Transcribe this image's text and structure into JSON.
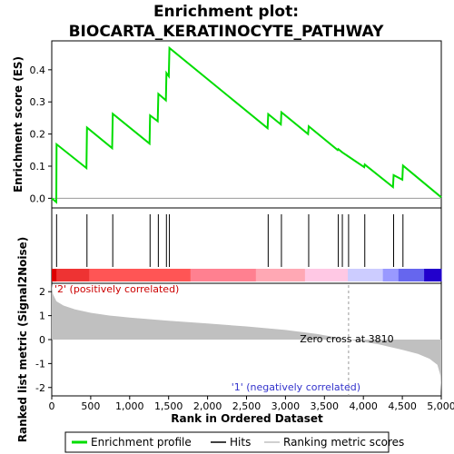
{
  "chart_data": {
    "type": "line",
    "title_line1": "Enrichment plot:",
    "title_line2": "BIOCARTA_KERATINOCYTE_PATHWAY",
    "x_domain": [
      0,
      5000
    ],
    "x_ticks": [
      0,
      500,
      1000,
      1500,
      2000,
      2500,
      3000,
      3500,
      4000,
      4500,
      5000
    ],
    "x_tick_labels": [
      "0",
      "500",
      "1,000",
      "1,500",
      "2,000",
      "2,500",
      "3,000",
      "3,500",
      "4,000",
      "4,500",
      "5,000"
    ],
    "xlabel": "Rank in Ordered Dataset",
    "es_panel": {
      "ylabel": "Enrichment score (ES)",
      "ylim": [
        -0.03,
        0.49
      ],
      "y_ticks": [
        0.0,
        0.1,
        0.2,
        0.3,
        0.4
      ],
      "y_tick_labels": [
        "0.0",
        "0.1",
        "0.2",
        "0.3",
        "0.4"
      ],
      "line_color": "#00dd00",
      "series_name": "Enrichment profile",
      "points": [
        [
          0,
          0.0
        ],
        [
          58,
          -0.012
        ],
        [
          62,
          0.168
        ],
        [
          445,
          0.094
        ],
        [
          452,
          0.22
        ],
        [
          775,
          0.156
        ],
        [
          783,
          0.263
        ],
        [
          1255,
          0.17
        ],
        [
          1262,
          0.258
        ],
        [
          1360,
          0.24
        ],
        [
          1368,
          0.325
        ],
        [
          1465,
          0.305
        ],
        [
          1472,
          0.39
        ],
        [
          1502,
          0.38
        ],
        [
          1510,
          0.468
        ],
        [
          2770,
          0.218
        ],
        [
          2778,
          0.262
        ],
        [
          2940,
          0.23
        ],
        [
          2948,
          0.268
        ],
        [
          3290,
          0.2
        ],
        [
          3298,
          0.224
        ],
        [
          3670,
          0.15
        ],
        [
          3678,
          0.153
        ],
        [
          3730,
          0.143
        ],
        [
          4010,
          0.097
        ],
        [
          4018,
          0.105
        ],
        [
          4380,
          0.035
        ],
        [
          4388,
          0.072
        ],
        [
          4500,
          0.058
        ],
        [
          4508,
          0.102
        ],
        [
          5000,
          0.003
        ]
      ]
    },
    "hits": {
      "series_name": "Hits",
      "positions": [
        62,
        452,
        783,
        1262,
        1368,
        1472,
        1510,
        2778,
        2948,
        3298,
        3678,
        3730,
        3810,
        4018,
        4388,
        4508
      ]
    },
    "color_bar": {
      "segments": [
        {
          "from": 0,
          "to": 60,
          "color": "#dd0000"
        },
        {
          "from": 60,
          "to": 480,
          "color": "#ee3333"
        },
        {
          "from": 480,
          "to": 1780,
          "color": "#ff5555"
        },
        {
          "from": 1780,
          "to": 2620,
          "color": "#ff8090"
        },
        {
          "from": 2620,
          "to": 3250,
          "color": "#ffa8b4"
        },
        {
          "from": 3250,
          "to": 3800,
          "color": "#ffc8e4"
        },
        {
          "from": 3800,
          "to": 4250,
          "color": "#ccccff"
        },
        {
          "from": 4250,
          "to": 4450,
          "color": "#9999ff"
        },
        {
          "from": 4450,
          "to": 4780,
          "color": "#6666ee"
        },
        {
          "from": 4780,
          "to": 5000,
          "color": "#2200cc"
        }
      ]
    },
    "metric_panel": {
      "ylabel": "Ranked list metric (Signal2Noise)",
      "ylim": [
        -2.35,
        2.35
      ],
      "y_ticks": [
        -2,
        -1,
        0,
        1,
        2
      ],
      "y_tick_labels": [
        "-2",
        "-1",
        "0",
        "1",
        "2"
      ],
      "series_name": "Ranking metric scores",
      "fill_color": "#c0c0c0",
      "curve": [
        [
          0,
          2.3
        ],
        [
          15,
          1.9
        ],
        [
          60,
          1.6
        ],
        [
          150,
          1.42
        ],
        [
          300,
          1.26
        ],
        [
          500,
          1.12
        ],
        [
          750,
          1.0
        ],
        [
          1000,
          0.92
        ],
        [
          1500,
          0.79
        ],
        [
          2000,
          0.67
        ],
        [
          2500,
          0.55
        ],
        [
          3000,
          0.4
        ],
        [
          3400,
          0.24
        ],
        [
          3810,
          0.0
        ],
        [
          4200,
          -0.2
        ],
        [
          4500,
          -0.43
        ],
        [
          4700,
          -0.6
        ],
        [
          4850,
          -0.8
        ],
        [
          4950,
          -1.05
        ],
        [
          4990,
          -1.5
        ],
        [
          5000,
          -2.2
        ]
      ],
      "zero_cross_rank": 3810,
      "zero_cross_label": "Zero cross at 3810",
      "pos_label": "'2' (positively correlated)",
      "neg_label": "'1' (negatively correlated)"
    },
    "legend": {
      "placement": "bottom",
      "items": [
        "Enrichment profile",
        "Hits",
        "Ranking metric scores"
      ]
    }
  }
}
